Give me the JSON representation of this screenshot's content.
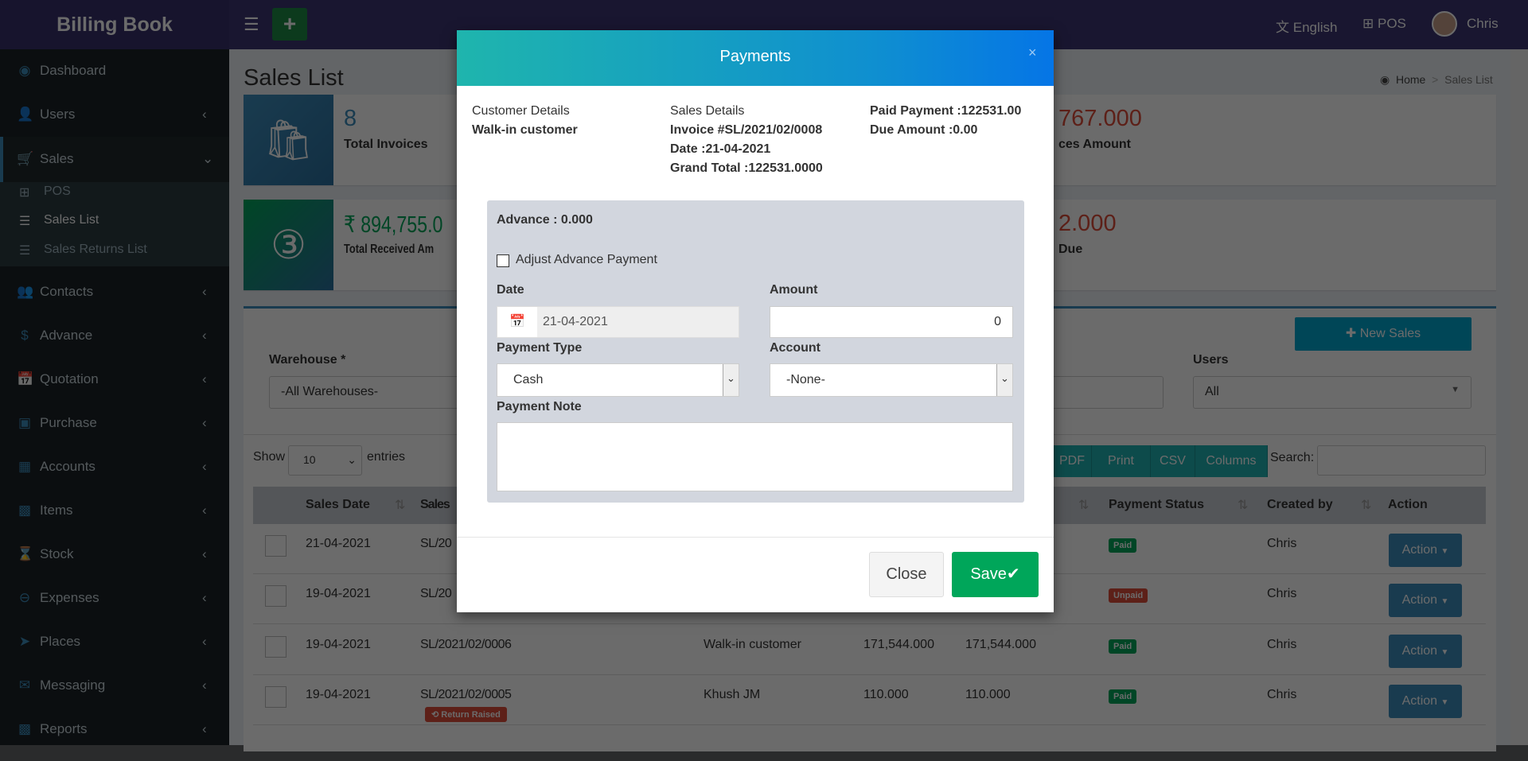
{
  "app": {
    "title": "Billing Book",
    "language": "English",
    "pos": "POS",
    "user": "Chris"
  },
  "sidebar": {
    "items": [
      {
        "label": "Dashboard",
        "icon": "dashboard-icon"
      },
      {
        "label": "Users",
        "icon": "user-plus-icon"
      },
      {
        "label": "Sales",
        "icon": "cart-icon"
      },
      {
        "label": "Contacts",
        "icon": "users-icon"
      },
      {
        "label": "Advance",
        "icon": "dollar-icon"
      },
      {
        "label": "Quotation",
        "icon": "calendar-plus-icon"
      },
      {
        "label": "Purchase",
        "icon": "cube-icon"
      },
      {
        "label": "Accounts",
        "icon": "grid-icon"
      },
      {
        "label": "Items",
        "icon": "cubes-icon"
      },
      {
        "label": "Stock",
        "icon": "hourglass-icon"
      },
      {
        "label": "Expenses",
        "icon": "minus-circle-icon"
      },
      {
        "label": "Places",
        "icon": "paper-plane-icon"
      },
      {
        "label": "Messaging",
        "icon": "envelope-icon"
      },
      {
        "label": "Reports",
        "icon": "bar-chart-icon"
      }
    ],
    "sales_sub": [
      "POS",
      "Sales List",
      "Sales Returns List"
    ]
  },
  "page": {
    "title": "Sales List",
    "breadcrumb": [
      "Home",
      "Sales List"
    ]
  },
  "stats": [
    {
      "value": "8",
      "label": "Total Invoices"
    },
    {
      "value": "767.000",
      "label": "ces Amount"
    },
    {
      "value": "₹ 894,755.0",
      "label": "Total Received Am"
    },
    {
      "value": "2.000",
      "label": "Due"
    }
  ],
  "filters": {
    "new_sales": "New Sales",
    "warehouse_label": "Warehouse *",
    "warehouse_value": "-All Warehouses-",
    "users_label": "Users",
    "users_value": "All"
  },
  "table": {
    "show": "Show",
    "entries_value": "10",
    "entries": "entries",
    "buttons": [
      "PDF",
      "Print",
      "CSV",
      "Columns"
    ],
    "search_label": "Search:",
    "headers": [
      "Sales Date",
      "Sales",
      "Payment Status",
      "Created by",
      "Action"
    ],
    "rows": [
      {
        "date": "21-04-2021",
        "no": "SL/20",
        "customer": "",
        "total": "",
        "paid": "",
        "status": "Paid",
        "by": "Chris",
        "action": "Action"
      },
      {
        "date": "19-04-2021",
        "no": "SL/20",
        "customer": "",
        "total": "",
        "paid": "",
        "status": "Unpaid",
        "by": "Chris",
        "action": "Action"
      },
      {
        "date": "19-04-2021",
        "no": "SL/2021/02/0006",
        "customer": "Walk-in customer",
        "total": "171,544.000",
        "paid": "171,544.000",
        "status": "Paid",
        "by": "Chris",
        "action": "Action"
      },
      {
        "date": "19-04-2021",
        "no": "SL/2021/02/0005",
        "customer": "Khush JM",
        "total": "110.000",
        "paid": "110.000",
        "status": "Paid",
        "by": "Chris",
        "action": "Action",
        "tag": "Return Raised"
      }
    ],
    "status_colors": {
      "Paid": "#00a65a",
      "Unpaid": "#dd4b39"
    }
  },
  "modal": {
    "title": "Payments",
    "customer_heading": "Customer Details",
    "customer": "Walk-in customer",
    "sales_heading": "Sales Details",
    "invoice": "Invoice #SL/2021/02/0008",
    "date": "Date :21-04-2021",
    "grand_total": "Grand Total :122531.0000",
    "paid": "Paid Payment :122531.00",
    "due": "Due Amount :0.00",
    "advance": "Advance : 0.000",
    "adjust_label": "Adjust Advance Payment",
    "adjust_checked": false,
    "date_label": "Date",
    "date_value": "21-04-2021",
    "amount_label": "Amount",
    "amount_value": "0",
    "ptype_label": "Payment Type",
    "ptype_value": "Cash",
    "account_label": "Account",
    "account_value": "-None-",
    "note_label": "Payment Note",
    "note_value": "",
    "close": "Close",
    "save": "Save"
  }
}
